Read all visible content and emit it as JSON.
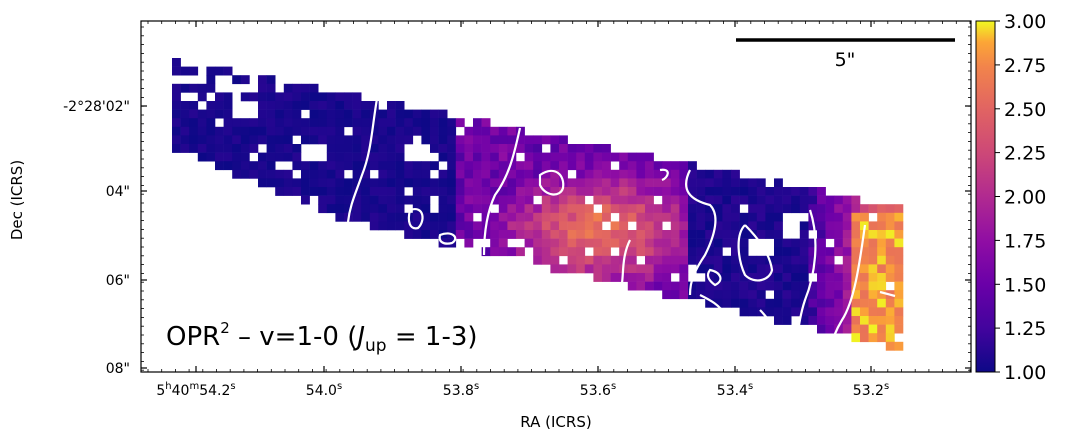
{
  "chart_data": {
    "type": "heatmap",
    "title": "",
    "xlabel": "RA (ICRS)",
    "ylabel": "Dec (ICRS)",
    "x_ticks": [
      {
        "prefix": "5",
        "h": "h",
        "mid": "40",
        "m": "m",
        "val": "54.2",
        "s": "s"
      },
      {
        "val": "54.0",
        "s": "s"
      },
      {
        "val": "53.8",
        "s": "s"
      },
      {
        "val": "53.6",
        "s": "s"
      },
      {
        "val": "53.4",
        "s": "s"
      },
      {
        "val": "53.2",
        "s": "s"
      }
    ],
    "y_ticks": [
      "-2°28'02\"",
      "04\"",
      "06\"",
      "08\""
    ],
    "annotation": {
      "main": "OPR",
      "sup": "2",
      "rest": " – v=1-0 (",
      "J": "J",
      "sub": "up",
      "tail": " = 1-3)"
    },
    "scalebar_label": "5\"",
    "colorbar": {
      "min": 1.0,
      "max": 3.0,
      "ticks": [
        "3.00",
        "2.75",
        "2.50",
        "2.25",
        "2.00",
        "1.75",
        "1.50",
        "1.25",
        "1.00"
      ],
      "colormap": "plasma"
    },
    "grid": false
  }
}
